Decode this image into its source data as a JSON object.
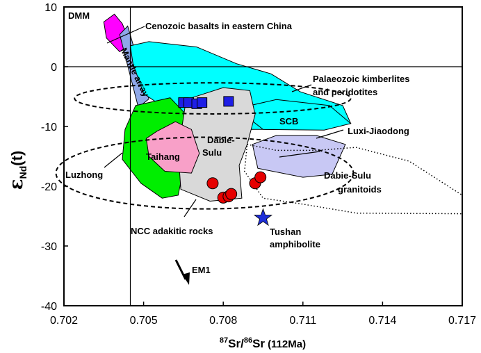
{
  "chart_data": {
    "type": "scatter",
    "title": "",
    "xlabel": "87Sr/86Sr (112Ma)",
    "xlabel_parts": {
      "mass1": "87",
      "el1": "Sr/",
      "mass2": "86",
      "el2": "Sr",
      "suffix": "(112Ma)"
    },
    "ylabel": "εNd(t)",
    "ylabel_parts": {
      "eps": "ε",
      "sub": "Nd",
      "tail": "(t)"
    },
    "xlim": [
      0.702,
      0.717
    ],
    "ylim": [
      -40,
      10
    ],
    "x_ticks": [
      "0.702",
      "0.705",
      "0.708",
      "0.711",
      "0.714",
      "0.717"
    ],
    "y_ticks": [
      "10",
      "0",
      "-10",
      "-20",
      "-30",
      "-40"
    ],
    "reference_lines": {
      "x": 0.7045,
      "y": 0
    },
    "fields": [
      {
        "name": "DMM",
        "fill": "#ff00ff",
        "points": [
          [
            0.7035,
            7.5
          ],
          [
            0.7039,
            8.8
          ],
          [
            0.7042,
            7.2
          ],
          [
            0.7045,
            3.8
          ],
          [
            0.7041,
            2.5
          ],
          [
            0.7036,
            4.8
          ]
        ]
      },
      {
        "name": "Mantle array",
        "fill": "#8fa8e8",
        "points": [
          [
            0.7041,
            5.4
          ],
          [
            0.7048,
            -6.8
          ],
          [
            0.7052,
            -5.4
          ],
          [
            0.7044,
            6.8
          ]
        ]
      },
      {
        "name": "Cenozoic basalts in eastern China",
        "fill": "#00ffff",
        "points": [
          [
            0.7045,
            3.5
          ],
          [
            0.7052,
            4.2
          ],
          [
            0.707,
            3.3
          ],
          [
            0.7085,
            0.5
          ],
          [
            0.7098,
            -1.2
          ],
          [
            0.7109,
            -4.2
          ],
          [
            0.7125,
            -6.5
          ],
          [
            0.7128,
            -9.5
          ],
          [
            0.7118,
            -10.5
          ],
          [
            0.7085,
            -10.5
          ],
          [
            0.706,
            -7.5
          ],
          [
            0.705,
            -4.5
          ],
          [
            0.7046,
            0.5
          ]
        ]
      },
      {
        "name": "SCB",
        "fill": "#00ffff",
        "points": [
          [
            0.7085,
            -7.0
          ],
          [
            0.71,
            -5.5
          ],
          [
            0.712,
            -6.5
          ],
          [
            0.7128,
            -9.5
          ],
          [
            0.7118,
            -10.6
          ],
          [
            0.7095,
            -10.5
          ]
        ]
      },
      {
        "name": "Luzhong",
        "fill": "#00ee00",
        "points": [
          [
            0.7047,
            -6.5
          ],
          [
            0.706,
            -5.2
          ],
          [
            0.7066,
            -8.0
          ],
          [
            0.7066,
            -15.0
          ],
          [
            0.7063,
            -21.5
          ],
          [
            0.7057,
            -22.0
          ],
          [
            0.7049,
            -19.5
          ],
          [
            0.7042,
            -15.5
          ],
          [
            0.7043,
            -10.5
          ]
        ]
      },
      {
        "name": "Dabie-Sulu",
        "fill": "#d9d9d9",
        "points": [
          [
            0.7066,
            -5.5
          ],
          [
            0.708,
            -3.5
          ],
          [
            0.709,
            -4.0
          ],
          [
            0.7092,
            -8.0
          ],
          [
            0.7089,
            -13.0
          ],
          [
            0.7086,
            -16.5
          ],
          [
            0.7087,
            -22.0
          ],
          [
            0.7075,
            -22.5
          ],
          [
            0.7064,
            -20.5
          ],
          [
            0.7063,
            -14.0
          ],
          [
            0.7065,
            -8.5
          ]
        ]
      },
      {
        "name": "Taihang",
        "fill": "#f8a0c8",
        "points": [
          [
            0.7055,
            -10.8
          ],
          [
            0.7062,
            -9.2
          ],
          [
            0.7068,
            -10.5
          ],
          [
            0.7071,
            -14.5
          ],
          [
            0.7068,
            -17.8
          ],
          [
            0.7058,
            -17.5
          ],
          [
            0.7052,
            -15.0
          ],
          [
            0.7051,
            -12.0
          ]
        ]
      },
      {
        "name": "Luxi-Jiaodong",
        "fill": "#c8c8f4",
        "points": [
          [
            0.7091,
            -13.0
          ],
          [
            0.71,
            -11.5
          ],
          [
            0.7115,
            -11.5
          ],
          [
            0.7126,
            -13.0
          ],
          [
            0.7121,
            -18.0
          ],
          [
            0.711,
            -18.5
          ],
          [
            0.7093,
            -17.0
          ]
        ]
      }
    ],
    "dashed_regions": [
      {
        "name": "Palaeozoic kimberlites and peridotites",
        "cx": 0.7076,
        "cy": -5.3,
        "rx": 0.0052,
        "ry": 2.6
      },
      {
        "name": "NCC adakitic rocks",
        "cx": 0.7073,
        "cy": -17.8,
        "rx": 0.0056,
        "ry": 6.0
      }
    ],
    "dotted_region": {
      "name": "Dabie-Sulu granitoids",
      "points": [
        [
          0.7089,
          -13.0
        ],
        [
          0.71,
          -14.0
        ],
        [
          0.7115,
          -14.0
        ],
        [
          0.713,
          -13.5
        ],
        [
          0.715,
          -15.8
        ],
        [
          0.717,
          -21.5
        ],
        [
          0.717,
          -24.6
        ],
        [
          0.713,
          -24.5
        ],
        [
          0.711,
          -23.0
        ],
        [
          0.7095,
          -22.0
        ],
        [
          0.7088,
          -17.5
        ]
      ]
    },
    "series": [
      {
        "name": "Palaeozoic kimberlites and peridotites",
        "marker": "square",
        "color": "#1e1ee6",
        "points": [
          [
            0.7065,
            -6.0
          ],
          [
            0.7067,
            -6.0
          ],
          [
            0.707,
            -6.2
          ],
          [
            0.7072,
            -6.0
          ],
          [
            0.7082,
            -5.8
          ]
        ]
      },
      {
        "name": "NCC adakitic rocks",
        "marker": "circle",
        "color": "#e60000",
        "points": [
          [
            0.7076,
            -19.5
          ],
          [
            0.708,
            -21.9
          ],
          [
            0.7082,
            -21.7
          ],
          [
            0.7083,
            -21.3
          ],
          [
            0.7092,
            -19.5
          ],
          [
            0.7094,
            -18.5
          ]
        ]
      },
      {
        "name": "Tushan amphibolite",
        "marker": "star",
        "color": "#1e2ed8",
        "points": [
          [
            0.7095,
            -25.3
          ]
        ]
      }
    ],
    "annotations": {
      "dmm": "DMM",
      "cenozoic": "Cenozoic basalts in  eastern  China",
      "mantle_array": "Mantle array",
      "kimber_1": "Palaeozoic kimberlites",
      "kimber_2": "and peridotites",
      "scb": "SCB",
      "luxi": "Luxi-Jiaodong",
      "dabie_1": "Dabie-",
      "dabie_2": "Sulu",
      "taihang": "Taihang",
      "luzhong": "Luzhong",
      "granitoid_1": "Dabie-Sulu",
      "granitoid_2": "granitoids",
      "ncc": "NCC adakitic rocks",
      "tushan_1": "Tushan",
      "tushan_2": "amphibolite",
      "em1": "EM1"
    },
    "colors": {
      "frame": "#000000",
      "background": "#ffffff"
    }
  }
}
